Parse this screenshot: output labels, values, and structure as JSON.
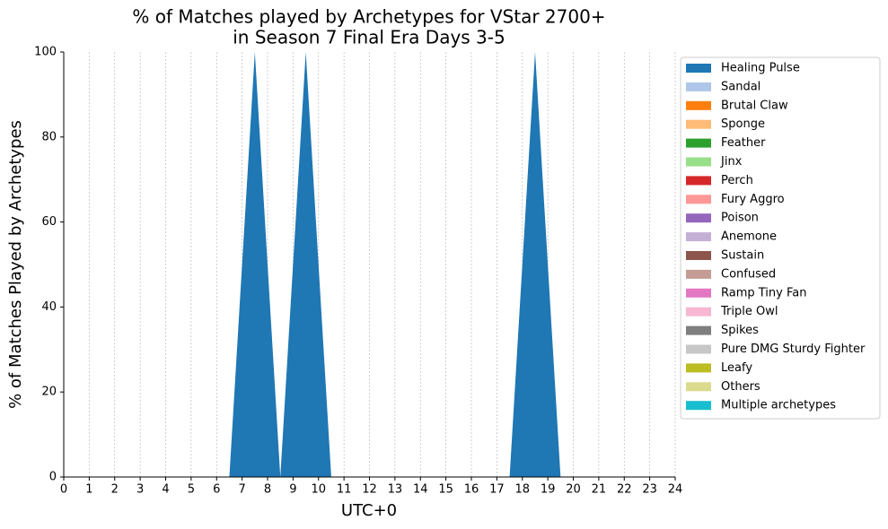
{
  "chart_data": {
    "type": "stacked_area",
    "title": [
      "% of Matches played by Archetypes for VStar 2700+",
      "in Season 7 Final Era Days 3-5"
    ],
    "xlabel": "UTC+0",
    "ylabel": "% of Matches Played by Archetypes",
    "x": [
      0.5,
      1.5,
      2.5,
      3.5,
      4.5,
      5.5,
      6.5,
      7.5,
      8.5,
      9.5,
      10.5,
      11.5,
      12.5,
      13.5,
      14.5,
      15.5,
      16.5,
      17.5,
      18.5,
      19.5,
      20.5,
      21.5,
      22.5,
      23.5
    ],
    "xlim": [
      0,
      24
    ],
    "xticks": [
      0,
      1,
      2,
      3,
      4,
      5,
      6,
      7,
      8,
      9,
      10,
      11,
      12,
      13,
      14,
      15,
      16,
      17,
      18,
      19,
      20,
      21,
      22,
      23,
      24
    ],
    "ylim": [
      0,
      100
    ],
    "yticks": [
      0,
      20,
      40,
      60,
      80,
      100
    ],
    "grid": "x",
    "legend": "outside upper right",
    "series": [
      {
        "name": "Healing Pulse",
        "color": "#1f77b4",
        "values": [
          0,
          0,
          0,
          0,
          0,
          0,
          0,
          100,
          0,
          100,
          0,
          0,
          0,
          0,
          0,
          0,
          0,
          0,
          100,
          0,
          0,
          0,
          0,
          0
        ]
      },
      {
        "name": "Sandal",
        "color": "#aec7e8",
        "values": [
          0,
          0,
          0,
          0,
          0,
          0,
          0,
          0,
          0,
          0,
          0,
          0,
          0,
          0,
          0,
          0,
          0,
          0,
          0,
          0,
          0,
          0,
          0,
          0
        ]
      },
      {
        "name": "Brutal Claw",
        "color": "#ff7f0e",
        "values": [
          0,
          0,
          0,
          0,
          0,
          0,
          0,
          0,
          0,
          0,
          0,
          0,
          0,
          0,
          0,
          0,
          0,
          0,
          0,
          0,
          0,
          0,
          0,
          0
        ]
      },
      {
        "name": "Sponge",
        "color": "#ffbb78",
        "values": [
          0,
          0,
          0,
          0,
          0,
          0,
          0,
          0,
          0,
          0,
          0,
          0,
          0,
          0,
          0,
          0,
          0,
          0,
          0,
          0,
          0,
          0,
          0,
          0
        ]
      },
      {
        "name": "Feather",
        "color": "#2ca02c",
        "values": [
          0,
          0,
          0,
          0,
          0,
          0,
          0,
          0,
          0,
          0,
          0,
          0,
          0,
          0,
          0,
          0,
          0,
          0,
          0,
          0,
          0,
          0,
          0,
          0
        ]
      },
      {
        "name": "Jinx",
        "color": "#98df8a",
        "values": [
          0,
          0,
          0,
          0,
          0,
          0,
          0,
          0,
          0,
          0,
          0,
          0,
          0,
          0,
          0,
          0,
          0,
          0,
          0,
          0,
          0,
          0,
          0,
          0
        ]
      },
      {
        "name": "Perch",
        "color": "#d62728",
        "values": [
          0,
          0,
          0,
          0,
          0,
          0,
          0,
          0,
          0,
          0,
          0,
          0,
          0,
          0,
          0,
          0,
          0,
          0,
          0,
          0,
          0,
          0,
          0,
          0
        ]
      },
      {
        "name": "Fury Aggro",
        "color": "#ff9896",
        "values": [
          0,
          0,
          0,
          0,
          0,
          0,
          0,
          0,
          0,
          0,
          0,
          0,
          0,
          0,
          0,
          0,
          0,
          0,
          0,
          0,
          0,
          0,
          0,
          0
        ]
      },
      {
        "name": "Poison",
        "color": "#9467bd",
        "values": [
          0,
          0,
          0,
          0,
          0,
          0,
          0,
          0,
          0,
          0,
          0,
          0,
          0,
          0,
          0,
          0,
          0,
          0,
          0,
          0,
          0,
          0,
          0,
          0
        ]
      },
      {
        "name": "Anemone",
        "color": "#c5b0d5",
        "values": [
          0,
          0,
          0,
          0,
          0,
          0,
          0,
          0,
          0,
          0,
          0,
          0,
          0,
          0,
          0,
          0,
          0,
          0,
          0,
          0,
          0,
          0,
          0,
          0
        ]
      },
      {
        "name": "Sustain",
        "color": "#8c564b",
        "values": [
          0,
          0,
          0,
          0,
          0,
          0,
          0,
          0,
          0,
          0,
          0,
          0,
          0,
          0,
          0,
          0,
          0,
          0,
          0,
          0,
          0,
          0,
          0,
          0
        ]
      },
      {
        "name": "Confused",
        "color": "#c49c94",
        "values": [
          0,
          0,
          0,
          0,
          0,
          0,
          0,
          0,
          0,
          0,
          0,
          0,
          0,
          0,
          0,
          0,
          0,
          0,
          0,
          0,
          0,
          0,
          0,
          0
        ]
      },
      {
        "name": "Ramp Tiny Fan",
        "color": "#e377c2",
        "values": [
          0,
          0,
          0,
          0,
          0,
          0,
          0,
          0,
          0,
          0,
          0,
          0,
          0,
          0,
          0,
          0,
          0,
          0,
          0,
          0,
          0,
          0,
          0,
          0
        ]
      },
      {
        "name": "Triple Owl",
        "color": "#f7b6d2",
        "values": [
          0,
          0,
          0,
          0,
          0,
          0,
          0,
          0,
          0,
          0,
          0,
          0,
          0,
          0,
          0,
          0,
          0,
          0,
          0,
          0,
          0,
          0,
          0,
          0
        ]
      },
      {
        "name": "Spikes",
        "color": "#7f7f7f",
        "values": [
          0,
          0,
          0,
          0,
          0,
          0,
          0,
          0,
          0,
          0,
          0,
          0,
          0,
          0,
          0,
          0,
          0,
          0,
          0,
          0,
          0,
          0,
          0,
          0
        ]
      },
      {
        "name": "Pure DMG Sturdy Fighter",
        "color": "#c7c7c7",
        "values": [
          0,
          0,
          0,
          0,
          0,
          0,
          0,
          0,
          0,
          0,
          0,
          0,
          0,
          0,
          0,
          0,
          0,
          0,
          0,
          0,
          0,
          0,
          0,
          0
        ]
      },
      {
        "name": "Leafy",
        "color": "#bcbd22",
        "values": [
          0,
          0,
          0,
          0,
          0,
          0,
          0,
          0,
          0,
          0,
          0,
          0,
          0,
          0,
          0,
          0,
          0,
          0,
          0,
          0,
          0,
          0,
          0,
          0
        ]
      },
      {
        "name": "Others",
        "color": "#dbdb8d",
        "values": [
          0,
          0,
          0,
          0,
          0,
          0,
          0,
          0,
          0,
          0,
          0,
          0,
          0,
          0,
          0,
          0,
          0,
          0,
          0,
          0,
          0,
          0,
          0,
          0
        ]
      },
      {
        "name": "Multiple archetypes",
        "color": "#17becf",
        "values": [
          0,
          0,
          0,
          0,
          0,
          0,
          0,
          0,
          0,
          0,
          0,
          0,
          0,
          0,
          0,
          0,
          0,
          0,
          0,
          0,
          0,
          0,
          0,
          0
        ]
      }
    ]
  }
}
